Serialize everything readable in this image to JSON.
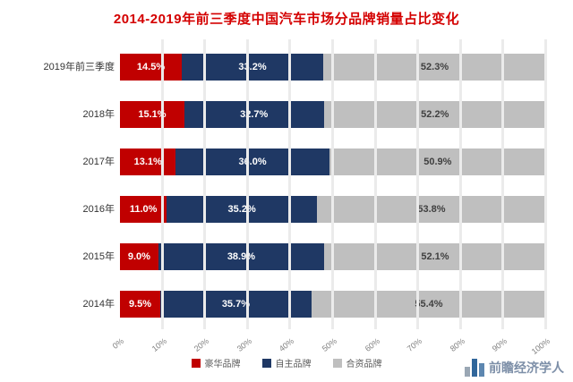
{
  "title": "2014-2019年前三季度中国汽车市场分品牌销量占比变化",
  "chart_data": {
    "type": "bar",
    "stacked": true,
    "orientation": "horizontal",
    "title": "2014-2019年前三季度中国汽车市场分品牌销量占比变化",
    "categories": [
      "2019年前三季度",
      "2018年",
      "2017年",
      "2016年",
      "2015年",
      "2014年"
    ],
    "series": [
      {
        "key": "red",
        "name": "豪华品牌",
        "color": "#c00000",
        "label_color": "#ffffff",
        "values": [
          14.5,
          15.1,
          13.1,
          11.0,
          9.0,
          9.5
        ]
      },
      {
        "key": "blue",
        "name": "自主品牌",
        "color": "#1f3864",
        "label_color": "#ffffff",
        "values": [
          33.2,
          32.7,
          36.0,
          35.2,
          38.9,
          35.7
        ]
      },
      {
        "key": "gray",
        "name": "合资品牌",
        "color": "#bfbfbf",
        "label_color": "#404040",
        "values": [
          52.3,
          52.2,
          50.9,
          53.8,
          52.1,
          55.4
        ]
      }
    ],
    "x_ticks": [
      "0%",
      "10%",
      "20%",
      "30%",
      "40%",
      "50%",
      "60%",
      "70%",
      "80%",
      "90%",
      "100%"
    ],
    "xlim": [
      0,
      100
    ],
    "grid": true,
    "legend_position": "bottom"
  },
  "watermark": {
    "text": "前瞻经济学人"
  }
}
